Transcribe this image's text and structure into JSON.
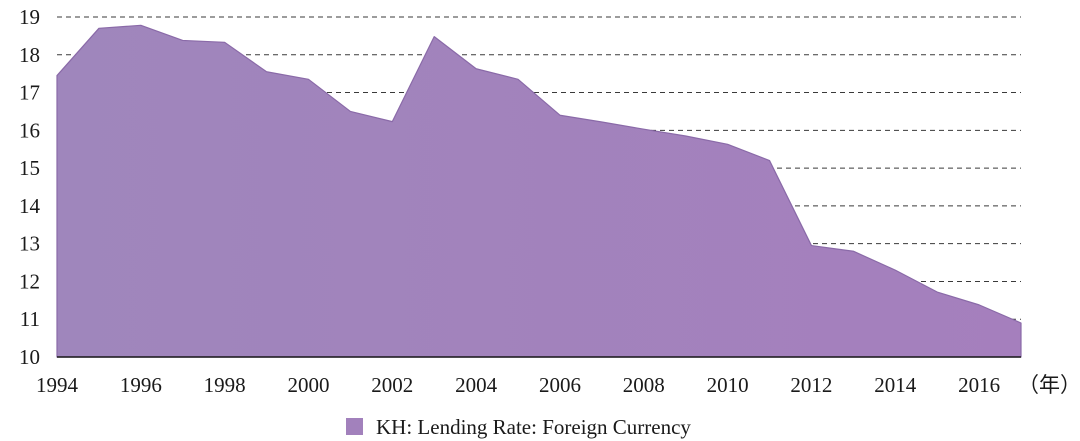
{
  "chart_data": {
    "type": "area",
    "x": [
      1994,
      1995,
      1996,
      1997,
      1998,
      1999,
      2000,
      2001,
      2002,
      2003,
      2004,
      2005,
      2006,
      2007,
      2008,
      2009,
      2010,
      2011,
      2012,
      2013,
      2014,
      2015,
      2016,
      2017
    ],
    "series": [
      {
        "name": "KH: Lending Rate: Foreign Currency",
        "values": [
          17.45,
          18.7,
          18.78,
          18.38,
          18.33,
          17.55,
          17.35,
          16.5,
          16.23,
          18.48,
          17.63,
          17.35,
          16.4,
          16.22,
          16.03,
          15.85,
          15.63,
          15.2,
          12.95,
          12.8,
          12.3,
          11.72,
          11.38,
          10.9
        ],
        "color": "#a281bc"
      }
    ],
    "xticks": [
      "1994",
      "1996",
      "1998",
      "2000",
      "2002",
      "2004",
      "2006",
      "2008",
      "2010",
      "2012",
      "2014",
      "2016"
    ],
    "x_unit": "（年）",
    "yticks": [
      "10",
      "11",
      "12",
      "13",
      "14",
      "15",
      "16",
      "17",
      "18",
      "19"
    ],
    "ylim": [
      10,
      19
    ],
    "xlim": [
      1994,
      2017
    ],
    "grid": true,
    "legend": {
      "position": "bottom-center",
      "label": "KH: Lending Rate: Foreign Currency",
      "color": "#a281bc"
    },
    "title": "",
    "xlabel": "",
    "ylabel": ""
  }
}
